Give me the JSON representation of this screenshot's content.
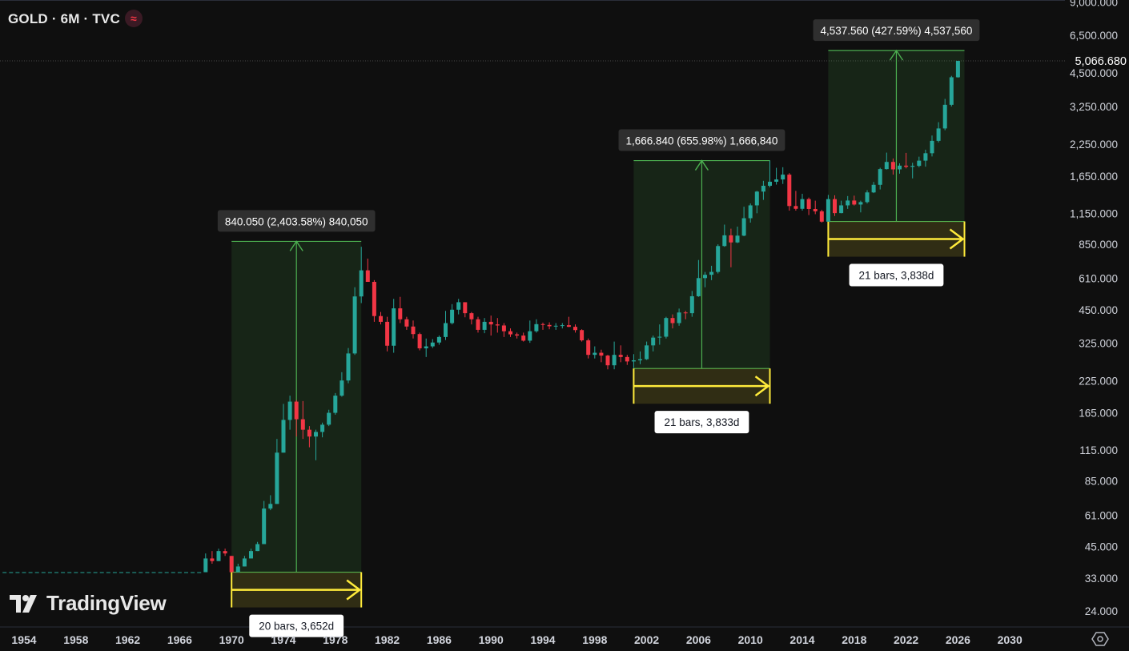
{
  "header": {
    "symbol": "GOLD · 6M · TVC",
    "live_icon": "approx-icon"
  },
  "brand": {
    "name": "TradingView",
    "logo_icon": "tradingview-logo-icon"
  },
  "colors": {
    "background": "#0f0f0f",
    "up": "#26a69a",
    "down": "#f23645",
    "measure_line": "#4caf50",
    "time_line": "#ffeb3b",
    "axis_text": "#d1d4dc"
  },
  "chart_data": {
    "type": "candlestick",
    "title": "",
    "y_scale": "log",
    "ylim": [
      20,
      9000
    ],
    "xlim": [
      1952.5,
      2032.5
    ],
    "x_ticks": [
      "1954",
      "1958",
      "1962",
      "1966",
      "1970",
      "1974",
      "1978",
      "1982",
      "1986",
      "1990",
      "1994",
      "1998",
      "2002",
      "2006",
      "2010",
      "2014",
      "2018",
      "2022",
      "2026",
      "2030"
    ],
    "y_ticks": [
      "9,000.000",
      "6,500.000",
      "4,500.000",
      "3,250.000",
      "2,250.000",
      "1,650.000",
      "1,150.000",
      "850.000",
      "610.000",
      "450.000",
      "325.000",
      "225.000",
      "165.000",
      "115.000",
      "85.000",
      "61.000",
      "45.000",
      "33.000",
      "24.000"
    ],
    "last_price": {
      "value": 5066.68,
      "label": "5,066.680"
    },
    "candles": [
      [
        1952.5,
        35,
        35,
        35,
        35
      ],
      [
        1953.0,
        35,
        35,
        35,
        35
      ],
      [
        1953.5,
        35,
        35,
        35,
        35
      ],
      [
        1954.0,
        35,
        35,
        35,
        35
      ],
      [
        1954.5,
        35,
        35,
        35,
        35
      ],
      [
        1955.0,
        35,
        35,
        35,
        35
      ],
      [
        1955.5,
        35,
        35,
        35,
        35
      ],
      [
        1956.0,
        35,
        35,
        35,
        35
      ],
      [
        1956.5,
        35,
        35,
        35,
        35
      ],
      [
        1957.0,
        35,
        35,
        35,
        35
      ],
      [
        1957.5,
        35,
        35,
        35,
        35
      ],
      [
        1958.0,
        35,
        35,
        35,
        35
      ],
      [
        1958.5,
        35,
        35,
        35,
        35
      ],
      [
        1959.0,
        35,
        35,
        35,
        35
      ],
      [
        1959.5,
        35,
        35,
        35,
        35
      ],
      [
        1960.0,
        35,
        35,
        35,
        35
      ],
      [
        1960.5,
        35,
        35,
        35,
        35
      ],
      [
        1961.0,
        35,
        35,
        35,
        35
      ],
      [
        1961.5,
        35,
        35,
        35,
        35
      ],
      [
        1962.0,
        35,
        35,
        35,
        35
      ],
      [
        1962.5,
        35,
        35,
        35,
        35
      ],
      [
        1963.0,
        35,
        35,
        35,
        35
      ],
      [
        1963.5,
        35,
        35,
        35,
        35
      ],
      [
        1964.0,
        35,
        35,
        35,
        35
      ],
      [
        1964.5,
        35,
        35,
        35,
        35
      ],
      [
        1965.0,
        35,
        35,
        35,
        35
      ],
      [
        1965.5,
        35,
        35,
        35,
        35
      ],
      [
        1966.0,
        35,
        35,
        35,
        35
      ],
      [
        1966.5,
        35,
        35,
        35,
        35
      ],
      [
        1967.0,
        35,
        35,
        35,
        35
      ],
      [
        1967.5,
        35,
        35,
        35,
        35
      ],
      [
        1968.0,
        35,
        42,
        35,
        40
      ],
      [
        1968.5,
        40,
        43,
        38,
        39
      ],
      [
        1969.0,
        39,
        44,
        39,
        43
      ],
      [
        1969.5,
        43,
        44,
        41,
        42
      ],
      [
        1970.0,
        41,
        41,
        35,
        35
      ],
      [
        1970.5,
        35,
        38,
        35,
        37
      ],
      [
        1971.0,
        37,
        41,
        37,
        40
      ],
      [
        1971.5,
        40,
        44,
        40,
        43
      ],
      [
        1972.0,
        43,
        47,
        43,
        46
      ],
      [
        1972.5,
        46,
        70,
        46,
        65
      ],
      [
        1973.0,
        65,
        74,
        64,
        68
      ],
      [
        1973.5,
        68,
        128,
        68,
        112
      ],
      [
        1974.0,
        112,
        180,
        112,
        154
      ],
      [
        1974.5,
        154,
        195,
        140,
        184
      ],
      [
        1975.0,
        184,
        187,
        131,
        155
      ],
      [
        1975.5,
        155,
        185,
        128,
        140
      ],
      [
        1976.0,
        140,
        145,
        118,
        131
      ],
      [
        1976.5,
        131,
        140,
        104,
        137
      ],
      [
        1977.0,
        137,
        150,
        130,
        147
      ],
      [
        1977.5,
        147,
        170,
        145,
        165
      ],
      [
        1978.0,
        165,
        200,
        162,
        195
      ],
      [
        1978.5,
        195,
        245,
        193,
        226
      ],
      [
        1979.0,
        226,
        310,
        220,
        294
      ],
      [
        1979.5,
        294,
        560,
        290,
        512
      ],
      [
        1980.0,
        512,
        830,
        480,
        660
      ],
      [
        1980.5,
        660,
        740,
        590,
        590
      ],
      [
        1981.0,
        590,
        600,
        400,
        423
      ],
      [
        1981.5,
        423,
        440,
        390,
        400
      ],
      [
        1982.0,
        400,
        420,
        300,
        317
      ],
      [
        1982.5,
        317,
        500,
        296,
        456
      ],
      [
        1983.0,
        456,
        510,
        395,
        410
      ],
      [
        1983.5,
        410,
        420,
        370,
        382
      ],
      [
        1984.0,
        382,
        405,
        340,
        355
      ],
      [
        1984.5,
        355,
        360,
        303,
        309
      ],
      [
        1985.0,
        309,
        340,
        284,
        315
      ],
      [
        1985.5,
        315,
        338,
        310,
        327
      ],
      [
        1986.0,
        327,
        350,
        320,
        345
      ],
      [
        1986.5,
        345,
        445,
        335,
        395
      ],
      [
        1987.0,
        395,
        475,
        390,
        450
      ],
      [
        1987.5,
        450,
        500,
        430,
        484
      ],
      [
        1988.0,
        484,
        484,
        418,
        435
      ],
      [
        1988.5,
        435,
        440,
        390,
        410
      ],
      [
        1989.0,
        410,
        420,
        360,
        370
      ],
      [
        1989.5,
        370,
        415,
        358,
        400
      ],
      [
        1990.0,
        400,
        425,
        350,
        390
      ],
      [
        1990.5,
        390,
        415,
        360,
        386
      ],
      [
        1991.0,
        386,
        395,
        345,
        365
      ],
      [
        1991.5,
        365,
        375,
        345,
        354
      ],
      [
        1992.0,
        354,
        360,
        340,
        350
      ],
      [
        1992.5,
        350,
        360,
        330,
        333
      ],
      [
        1993.0,
        333,
        405,
        326,
        365
      ],
      [
        1993.5,
        365,
        410,
        360,
        391
      ],
      [
        1994.0,
        391,
        397,
        370,
        388
      ],
      [
        1994.5,
        388,
        398,
        372,
        383
      ],
      [
        1995.0,
        383,
        395,
        370,
        385
      ],
      [
        1995.5,
        385,
        395,
        375,
        387
      ],
      [
        1996.0,
        387,
        420,
        380,
        381
      ],
      [
        1996.5,
        381,
        390,
        360,
        369
      ],
      [
        1997.0,
        369,
        372,
        330,
        334
      ],
      [
        1997.5,
        334,
        340,
        280,
        290
      ],
      [
        1998.0,
        290,
        315,
        280,
        296
      ],
      [
        1998.5,
        296,
        305,
        270,
        288
      ],
      [
        1999.0,
        288,
        290,
        252,
        262
      ],
      [
        1999.5,
        262,
        330,
        252,
        290
      ],
      [
        2000.0,
        290,
        318,
        270,
        284
      ],
      [
        2000.5,
        284,
        290,
        263,
        272
      ],
      [
        2001.0,
        272,
        292,
        255,
        275
      ],
      [
        2001.5,
        275,
        300,
        265,
        278
      ],
      [
        2002.0,
        278,
        330,
        276,
        318
      ],
      [
        2002.5,
        318,
        350,
        300,
        343
      ],
      [
        2003.0,
        343,
        390,
        320,
        346
      ],
      [
        2003.5,
        346,
        420,
        340,
        415
      ],
      [
        2004.0,
        415,
        430,
        375,
        395
      ],
      [
        2004.5,
        395,
        455,
        385,
        438
      ],
      [
        2005.0,
        438,
        445,
        410,
        435
      ],
      [
        2005.5,
        435,
        540,
        420,
        513
      ],
      [
        2006.0,
        513,
        730,
        510,
        612
      ],
      [
        2006.5,
        612,
        650,
        560,
        632
      ],
      [
        2007.0,
        632,
        690,
        600,
        650
      ],
      [
        2007.5,
        650,
        850,
        640,
        836
      ],
      [
        2008.0,
        836,
        1030,
        830,
        928
      ],
      [
        2008.5,
        928,
        990,
        680,
        866
      ],
      [
        2009.0,
        866,
        1010,
        860,
        925
      ],
      [
        2009.5,
        925,
        1226,
        920,
        1096
      ],
      [
        2010.0,
        1096,
        1265,
        1050,
        1242
      ],
      [
        2010.5,
        1242,
        1430,
        1150,
        1420
      ],
      [
        2011.0,
        1420,
        1577,
        1310,
        1503
      ],
      [
        2011.5,
        1503,
        1920,
        1480,
        1563
      ],
      [
        2012.0,
        1563,
        1790,
        1520,
        1598
      ],
      [
        2012.5,
        1598,
        1800,
        1530,
        1675
      ],
      [
        2013.0,
        1675,
        1700,
        1180,
        1234
      ],
      [
        2013.5,
        1234,
        1430,
        1180,
        1201
      ],
      [
        2014.0,
        1201,
        1390,
        1180,
        1320
      ],
      [
        2014.5,
        1320,
        1340,
        1130,
        1199
      ],
      [
        2015.0,
        1199,
        1300,
        1140,
        1172
      ],
      [
        2015.5,
        1172,
        1190,
        1050,
        1060
      ],
      [
        2016.0,
        1060,
        1375,
        1060,
        1320
      ],
      [
        2016.5,
        1320,
        1370,
        1120,
        1152
      ],
      [
        2017.0,
        1152,
        1300,
        1150,
        1242
      ],
      [
        2017.5,
        1242,
        1360,
        1200,
        1302
      ],
      [
        2018.0,
        1302,
        1365,
        1240,
        1252
      ],
      [
        2018.5,
        1252,
        1300,
        1160,
        1282
      ],
      [
        2019.0,
        1282,
        1440,
        1265,
        1409
      ],
      [
        2019.5,
        1409,
        1560,
        1400,
        1517
      ],
      [
        2020.0,
        1517,
        1790,
        1450,
        1768
      ],
      [
        2020.5,
        1768,
        2075,
        1760,
        1895
      ],
      [
        2021.0,
        1895,
        1960,
        1675,
        1763
      ],
      [
        2021.5,
        1763,
        1870,
        1690,
        1828
      ],
      [
        2022.0,
        1828,
        2070,
        1780,
        1807
      ],
      [
        2022.5,
        1807,
        1880,
        1615,
        1824
      ],
      [
        2023.0,
        1824,
        1995,
        1800,
        1919
      ],
      [
        2023.5,
        1919,
        2135,
        1810,
        2063
      ],
      [
        2024.0,
        2063,
        2450,
        2000,
        2327
      ],
      [
        2024.5,
        2327,
        2790,
        2290,
        2625
      ],
      [
        2025.0,
        2625,
        3500,
        2580,
        3305
      ],
      [
        2025.5,
        3305,
        4380,
        3250,
        4320
      ],
      [
        2026.0,
        4320,
        5066.68,
        4300,
        5066.68
      ]
    ],
    "measurements": [
      {
        "from_x": 1970.0,
        "to_x": 1980.0,
        "low": 35.0,
        "high": 875.0,
        "price_label": "840.050 (2,403.58%) 840,050",
        "time_label": "20 bars, 3,652d"
      },
      {
        "from_x": 2001.0,
        "to_x": 2011.5,
        "low": 254.0,
        "high": 1920.0,
        "price_label": "1,666.840 (655.98%) 1,666,840",
        "time_label": "21 bars, 3,833d"
      },
      {
        "from_x": 2016.0,
        "to_x": 2026.5,
        "low": 1062.0,
        "high": 5600.0,
        "price_label": "4,537.560 (427.59%) 4,537,560",
        "time_label": "21 bars, 3,838d"
      }
    ]
  }
}
